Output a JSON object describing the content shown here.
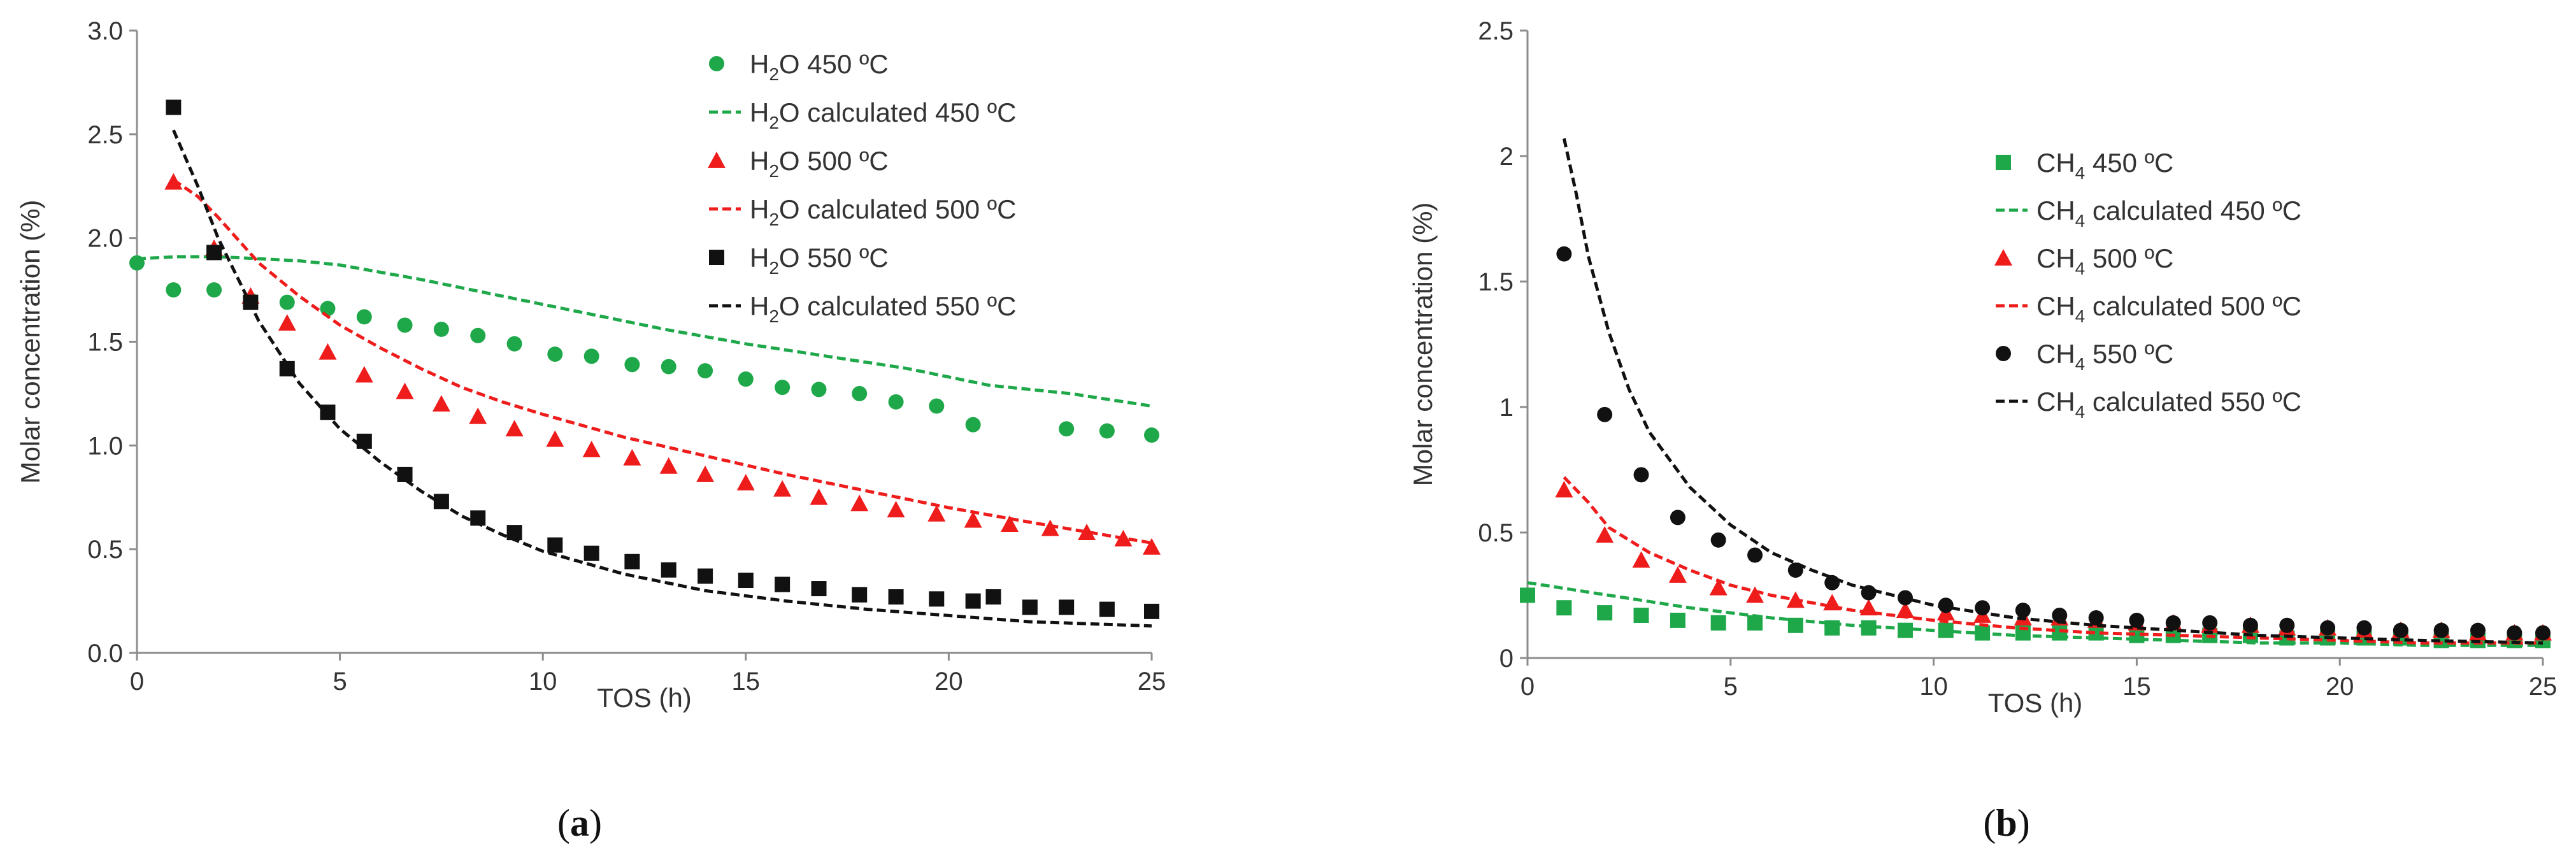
{
  "colors": {
    "green": "#1ea84a",
    "red": "#ef1c1c",
    "black": "#111111",
    "axis": "#8c8c8c",
    "text": "#333333"
  },
  "chart_data": [
    {
      "id": "a",
      "type": "scatter",
      "caption": "(a)",
      "caption_letter": "a",
      "xlabel": "TOS (h)",
      "ylabel": "Molar concentration (%)",
      "xlim": [
        0,
        25
      ],
      "ylim": [
        0,
        3
      ],
      "xticks": [
        0,
        5,
        10,
        15,
        20,
        25
      ],
      "yticks": [
        0,
        0.5,
        1,
        1.5,
        2,
        2.5,
        3
      ],
      "xtick_labels": [
        "0",
        "5",
        "10",
        "15",
        "20",
        "25"
      ],
      "ytick_labels": [
        "0.0",
        "0.5",
        "1.0",
        "1.5",
        "2.0",
        "2.5",
        "3.0"
      ],
      "legend_position": "top-right",
      "grid": false,
      "series": [
        {
          "name": "H2O 450 ºC",
          "legend": [
            "H",
            "2",
            "O 450 ºC"
          ],
          "kind": "markers",
          "marker": "circle",
          "color": "#1ea84a",
          "x": [
            0,
            0.9,
            1.9,
            2.8,
            3.7,
            4.7,
            5.6,
            6.6,
            7.5,
            8.4,
            9.3,
            10.3,
            11.2,
            12.2,
            13.1,
            14,
            15,
            15.9,
            16.8,
            17.8,
            18.7,
            19.7,
            20.6,
            22.9,
            23.9,
            25
          ],
          "y": [
            1.88,
            1.75,
            1.75,
            1.7,
            1.69,
            1.66,
            1.62,
            1.58,
            1.56,
            1.53,
            1.49,
            1.44,
            1.43,
            1.39,
            1.38,
            1.36,
            1.32,
            1.28,
            1.27,
            1.25,
            1.21,
            1.19,
            1.1,
            1.08,
            1.07,
            1.05
          ]
        },
        {
          "name": "H2O calculated 450 ºC",
          "legend": [
            "H",
            "2",
            "O calculated 450 ºC"
          ],
          "kind": "line",
          "dash": true,
          "color": "#1ea84a",
          "x": [
            0,
            1,
            2,
            3,
            4,
            5,
            7,
            9,
            11,
            13,
            15,
            17,
            19,
            21,
            23,
            25
          ],
          "y": [
            1.9,
            1.91,
            1.91,
            1.9,
            1.89,
            1.87,
            1.8,
            1.72,
            1.64,
            1.56,
            1.49,
            1.43,
            1.37,
            1.29,
            1.25,
            1.19
          ]
        },
        {
          "name": "H2O 500 ºC",
          "legend": [
            "H",
            "2",
            "O 500 ºC"
          ],
          "kind": "markers",
          "marker": "triangle",
          "color": "#ef1c1c",
          "x": [
            0.9,
            1.9,
            2.8,
            3.7,
            4.7,
            5.6,
            6.6,
            7.5,
            8.4,
            9.3,
            10.3,
            11.2,
            12.2,
            13.1,
            14,
            15,
            15.9,
            16.8,
            17.8,
            18.7,
            19.7,
            20.6,
            21.5,
            22.5,
            23.4,
            24.3,
            25
          ],
          "y": [
            2.27,
            1.95,
            1.72,
            1.59,
            1.45,
            1.34,
            1.26,
            1.2,
            1.14,
            1.08,
            1.03,
            0.98,
            0.94,
            0.9,
            0.86,
            0.82,
            0.79,
            0.75,
            0.72,
            0.69,
            0.67,
            0.64,
            0.62,
            0.6,
            0.58,
            0.55,
            0.51
          ]
        },
        {
          "name": "H2O calculated 500 ºC",
          "legend": [
            "H",
            "2",
            "O calculated 500 ºC"
          ],
          "kind": "line",
          "dash": true,
          "color": "#ef1c1c",
          "x": [
            0.9,
            1.5,
            2,
            3,
            4,
            5,
            6,
            7,
            8,
            9,
            10,
            12,
            14,
            16,
            18,
            20,
            22,
            25
          ],
          "y": [
            2.28,
            2.2,
            2.1,
            1.88,
            1.72,
            1.58,
            1.47,
            1.37,
            1.28,
            1.21,
            1.15,
            1.04,
            0.95,
            0.86,
            0.78,
            0.7,
            0.63,
            0.53
          ]
        },
        {
          "name": "H2O 550 ºC",
          "legend": [
            "H",
            "2",
            "O 550 ºC"
          ],
          "kind": "markers",
          "marker": "square",
          "color": "#111111",
          "x": [
            0.9,
            1.9,
            2.8,
            3.7,
            4.7,
            5.6,
            6.6,
            7.5,
            8.4,
            9.3,
            10.3,
            11.2,
            12.2,
            13.1,
            14,
            15,
            15.9,
            16.8,
            17.8,
            18.7,
            19.7,
            20.6,
            21.1,
            22,
            22.9,
            23.9,
            25
          ],
          "y": [
            2.63,
            1.93,
            1.69,
            1.37,
            1.16,
            1.02,
            0.86,
            0.73,
            0.65,
            0.58,
            0.52,
            0.48,
            0.44,
            0.4,
            0.37,
            0.35,
            0.33,
            0.31,
            0.28,
            0.27,
            0.26,
            0.25,
            0.27,
            0.22,
            0.22,
            0.21,
            0.2
          ]
        },
        {
          "name": "H2O calculated 550 ºC",
          "legend": [
            "H",
            "2",
            "O calculated 550 ºC"
          ],
          "kind": "line",
          "dash": true,
          "color": "#111111",
          "x": [
            0.9,
            1.5,
            2,
            3,
            4,
            5,
            6,
            7,
            8,
            9,
            10,
            12,
            14,
            16,
            18,
            20,
            22,
            25
          ],
          "y": [
            2.52,
            2.25,
            2.0,
            1.6,
            1.3,
            1.08,
            0.92,
            0.78,
            0.66,
            0.57,
            0.49,
            0.38,
            0.3,
            0.25,
            0.21,
            0.18,
            0.15,
            0.13
          ]
        }
      ]
    },
    {
      "id": "b",
      "type": "scatter",
      "caption": "(b)",
      "caption_letter": "b",
      "xlabel": "TOS (h)",
      "ylabel": "Molar concentration (%)",
      "xlim": [
        0,
        25
      ],
      "ylim": [
        0,
        2.5
      ],
      "xticks": [
        0,
        5,
        10,
        15,
        20,
        25
      ],
      "yticks": [
        0,
        0.5,
        1,
        1.5,
        2,
        2.5
      ],
      "xtick_labels": [
        "0",
        "5",
        "10",
        "15",
        "20",
        "25"
      ],
      "ytick_labels": [
        "0",
        "0.5",
        "1",
        "1.5",
        "2",
        "2.5"
      ],
      "legend_position": "center-right",
      "grid": false,
      "series": [
        {
          "name": "CH4 450 ºC",
          "legend": [
            "CH",
            "4",
            " 450 ºC"
          ],
          "kind": "markers",
          "marker": "square",
          "color": "#1ea84a",
          "x": [
            0,
            0.9,
            1.9,
            2.8,
            3.7,
            4.7,
            5.6,
            6.6,
            7.5,
            8.4,
            9.3,
            10.3,
            11.2,
            12.2,
            13.1,
            14,
            15,
            15.9,
            16.8,
            17.8,
            18.7,
            19.7,
            20.6,
            21.5,
            22.5,
            23.4,
            24.3,
            25
          ],
          "y": [
            0.25,
            0.2,
            0.18,
            0.17,
            0.15,
            0.14,
            0.14,
            0.13,
            0.12,
            0.12,
            0.11,
            0.11,
            0.1,
            0.1,
            0.1,
            0.1,
            0.09,
            0.09,
            0.09,
            0.09,
            0.08,
            0.08,
            0.08,
            0.08,
            0.07,
            0.07,
            0.07,
            0.07
          ]
        },
        {
          "name": "CH4 calculated 450 ºC",
          "legend": [
            "CH",
            "4",
            " calculated 450 ºC"
          ],
          "kind": "line",
          "dash": true,
          "color": "#1ea84a",
          "x": [
            0,
            2,
            4,
            6,
            8,
            10,
            12,
            14,
            16,
            18,
            20,
            22,
            25
          ],
          "y": [
            0.3,
            0.25,
            0.2,
            0.16,
            0.13,
            0.11,
            0.09,
            0.08,
            0.07,
            0.06,
            0.06,
            0.05,
            0.05
          ]
        },
        {
          "name": "CH4 500 ºC",
          "legend": [
            "CH",
            "4",
            " 500 ºC"
          ],
          "kind": "markers",
          "marker": "triangle",
          "color": "#ef1c1c",
          "x": [
            0.9,
            1.9,
            2.8,
            3.7,
            4.7,
            5.6,
            6.6,
            7.5,
            8.4,
            9.3,
            10.3,
            11.2,
            12.2,
            13.1,
            14,
            15,
            15.9,
            16.8,
            17.8,
            18.7,
            19.7,
            20.6,
            21.5,
            22.5,
            23.4,
            24.3,
            25
          ],
          "y": [
            0.67,
            0.49,
            0.39,
            0.33,
            0.28,
            0.25,
            0.23,
            0.22,
            0.2,
            0.19,
            0.18,
            0.17,
            0.16,
            0.16,
            0.15,
            0.14,
            0.14,
            0.13,
            0.13,
            0.12,
            0.12,
            0.11,
            0.11,
            0.11,
            0.1,
            0.1,
            0.1
          ]
        },
        {
          "name": "CH4 calculated 500 ºC",
          "legend": [
            "CH",
            "4",
            " calculated 500 ºC"
          ],
          "kind": "line",
          "dash": true,
          "color": "#ef1c1c",
          "x": [
            0.9,
            1.5,
            2,
            3,
            4,
            5,
            6,
            7,
            8,
            10,
            12,
            14,
            16,
            18,
            20,
            22,
            25
          ],
          "y": [
            0.72,
            0.62,
            0.52,
            0.42,
            0.35,
            0.29,
            0.25,
            0.22,
            0.19,
            0.15,
            0.12,
            0.1,
            0.09,
            0.08,
            0.07,
            0.06,
            0.06
          ]
        },
        {
          "name": "CH4 550 ºC",
          "legend": [
            "CH",
            "4",
            " 550 ºC"
          ],
          "kind": "markers",
          "marker": "circle",
          "color": "#111111",
          "x": [
            0.9,
            1.9,
            2.8,
            3.7,
            4.7,
            5.6,
            6.6,
            7.5,
            8.4,
            9.3,
            10.3,
            11.2,
            12.2,
            13.1,
            14,
            15,
            15.9,
            16.8,
            17.8,
            18.7,
            19.7,
            20.6,
            21.5,
            22.5,
            23.4,
            24.3,
            25
          ],
          "y": [
            1.61,
            0.97,
            0.73,
            0.56,
            0.47,
            0.41,
            0.35,
            0.3,
            0.26,
            0.24,
            0.21,
            0.2,
            0.19,
            0.17,
            0.16,
            0.15,
            0.14,
            0.14,
            0.13,
            0.13,
            0.12,
            0.12,
            0.11,
            0.11,
            0.11,
            0.1,
            0.1
          ]
        },
        {
          "name": "CH4 calculated 550 ºC",
          "legend": [
            "CH",
            "4",
            " calculated 550 ºC"
          ],
          "kind": "line",
          "dash": true,
          "color": "#111111",
          "x": [
            0.9,
            1.2,
            1.5,
            2,
            2.5,
            3,
            4,
            5,
            6,
            7,
            8,
            10,
            12,
            14,
            16,
            18,
            20,
            22,
            25
          ],
          "y": [
            2.07,
            1.85,
            1.6,
            1.3,
            1.07,
            0.9,
            0.68,
            0.53,
            0.42,
            0.35,
            0.29,
            0.21,
            0.16,
            0.13,
            0.11,
            0.09,
            0.08,
            0.07,
            0.06
          ]
        }
      ]
    }
  ]
}
